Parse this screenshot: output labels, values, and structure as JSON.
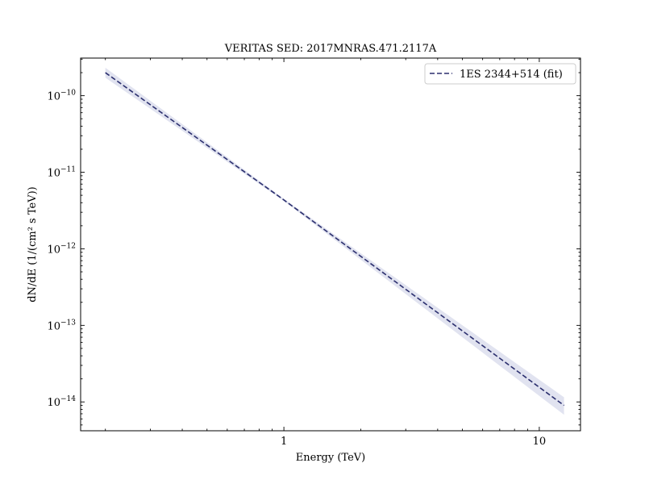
{
  "chart_data": {
    "type": "line",
    "title": "VERITAS SED: 2017MNRAS.471.2117A",
    "xlabel": "Energy (TeV)",
    "ylabel": "dN/dE (1/(cm² s TeV))",
    "xscale": "log",
    "yscale": "log",
    "xlim": [
      0.16,
      14.5
    ],
    "ylim": [
      4.2e-15,
      3.1e-10
    ],
    "grid": false,
    "legend_position": "top-right",
    "x_ticks": [
      {
        "value": 1,
        "label": "1"
      },
      {
        "value": 10,
        "label": "10"
      }
    ],
    "y_ticks": [
      {
        "value": 1e-10,
        "base": "10",
        "exp": "−10"
      },
      {
        "value": 1e-11,
        "base": "10",
        "exp": "−11"
      },
      {
        "value": 1e-12,
        "base": "10",
        "exp": "−12"
      },
      {
        "value": 1e-13,
        "base": "10",
        "exp": "−13"
      },
      {
        "value": 1e-14,
        "base": "10",
        "exp": "−14"
      }
    ],
    "series": [
      {
        "name": "1ES 2344+514 (fit)",
        "style": "dashed",
        "color": "#2b2f6e",
        "band_color": "#c8cce3",
        "x": [
          0.2,
          1,
          12.5
        ],
        "y": [
          2e-10,
          4.35e-12,
          9e-15
        ],
        "band_upper": [
          2.32e-10,
          4.5e-12,
          1.15e-14
        ],
        "band_lower": [
          1.72e-10,
          4.2e-12,
          6.8e-15
        ]
      }
    ]
  }
}
